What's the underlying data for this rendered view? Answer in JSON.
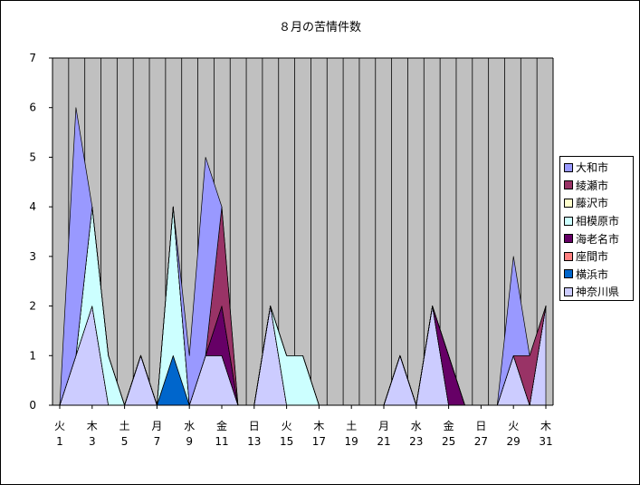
{
  "chart_data": {
    "type": "area",
    "title": "８月の苦情件数",
    "xlabel": "",
    "ylabel": "",
    "ylim": [
      0,
      7
    ],
    "grid": true,
    "legend_position": "right",
    "plot_background": "#c0c0c0",
    "y_ticks": [
      "0",
      "1",
      "2",
      "3",
      "4",
      "5",
      "6",
      "7"
    ],
    "categories": [
      "1",
      "2",
      "3",
      "4",
      "5",
      "6",
      "7",
      "8",
      "9",
      "10",
      "11",
      "12",
      "13",
      "14",
      "15",
      "16",
      "17",
      "18",
      "19",
      "20",
      "21",
      "22",
      "23",
      "24",
      "25",
      "26",
      "27",
      "28",
      "29",
      "30",
      "31"
    ],
    "x_tick_weekdays": [
      "火",
      "木",
      "土",
      "月",
      "水",
      "金",
      "日",
      "火",
      "木",
      "土",
      "月",
      "水",
      "金",
      "日",
      "火",
      "木"
    ],
    "x_tick_days": [
      "1",
      "3",
      "5",
      "7",
      "9",
      "11",
      "13",
      "15",
      "17",
      "19",
      "21",
      "23",
      "25",
      "27",
      "29",
      "31"
    ],
    "series": [
      {
        "name": "神奈川県",
        "color": "#ccccff",
        "values": [
          0,
          1,
          2,
          0,
          0,
          1,
          0,
          0,
          0,
          1,
          1,
          0,
          0,
          2,
          0,
          0,
          0,
          0,
          0,
          0,
          0,
          1,
          0,
          2,
          0,
          0,
          0,
          0,
          1,
          0,
          2
        ]
      },
      {
        "name": "横浜市",
        "color": "#0066cc",
        "values": [
          0,
          0,
          0,
          0,
          0,
          0,
          0,
          1,
          0,
          0,
          0,
          0,
          0,
          0,
          0,
          0,
          0,
          0,
          0,
          0,
          0,
          0,
          0,
          0,
          0,
          0,
          0,
          0,
          0,
          0,
          0
        ]
      },
      {
        "name": "座間市",
        "color": "#ff8080",
        "values": [
          0,
          0,
          0,
          0,
          0,
          0,
          0,
          0,
          0,
          0,
          0,
          0,
          0,
          0,
          0,
          0,
          0,
          0,
          0,
          0,
          0,
          0,
          0,
          0,
          0,
          0,
          0,
          0,
          0,
          0,
          0
        ]
      },
      {
        "name": "海老名市",
        "color": "#660066",
        "values": [
          0,
          0,
          0,
          0,
          0,
          0,
          0,
          0,
          0,
          0,
          1,
          0,
          0,
          0,
          0,
          0,
          0,
          0,
          0,
          0,
          0,
          0,
          0,
          0,
          1,
          0,
          0,
          0,
          0,
          0,
          0
        ]
      },
      {
        "name": "相模原市",
        "color": "#ccffff",
        "values": [
          0,
          0,
          2,
          1,
          0,
          0,
          0,
          3,
          0,
          0,
          0,
          0,
          0,
          0,
          1,
          1,
          0,
          0,
          0,
          0,
          0,
          0,
          0,
          0,
          0,
          0,
          0,
          0,
          0,
          0,
          0
        ]
      },
      {
        "name": "藤沢市",
        "color": "#ffffcc",
        "values": [
          0,
          0,
          0,
          0,
          0,
          0,
          0,
          0,
          0,
          0,
          0,
          0,
          0,
          0,
          0,
          0,
          0,
          0,
          0,
          0,
          0,
          0,
          0,
          0,
          0,
          0,
          0,
          0,
          0,
          0,
          0
        ]
      },
      {
        "name": "綾瀬市",
        "color": "#993366",
        "values": [
          0,
          0,
          0,
          0,
          0,
          0,
          0,
          0,
          0,
          0,
          2,
          0,
          0,
          0,
          0,
          0,
          0,
          0,
          0,
          0,
          0,
          0,
          0,
          0,
          0,
          0,
          0,
          0,
          0,
          1,
          0
        ]
      },
      {
        "name": "大和市",
        "color": "#9999ff",
        "values": [
          0,
          5,
          0,
          0,
          0,
          0,
          0,
          0,
          1,
          4,
          0,
          0,
          0,
          0,
          0,
          0,
          0,
          0,
          0,
          0,
          0,
          0,
          0,
          0,
          0,
          0,
          0,
          0,
          2,
          0,
          0
        ]
      }
    ]
  }
}
